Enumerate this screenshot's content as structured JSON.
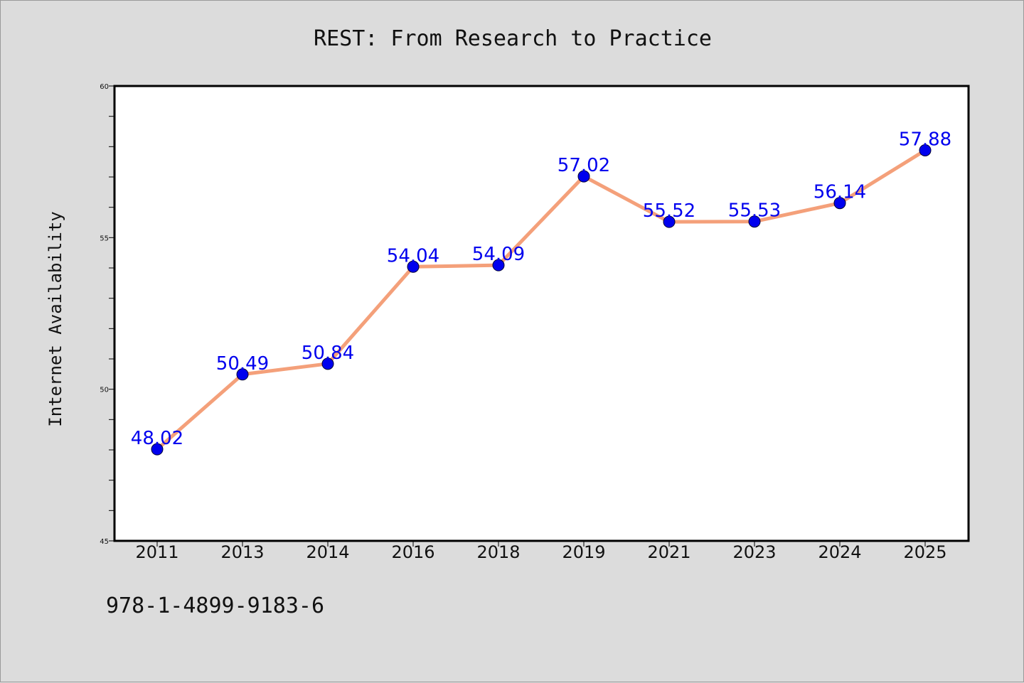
{
  "chart_data": {
    "type": "line",
    "title": "REST: From Research to Practice",
    "xlabel": "",
    "ylabel": "Internet Availability",
    "categories": [
      "2011",
      "2013",
      "2014",
      "2016",
      "2018",
      "2019",
      "2021",
      "2023",
      "2024",
      "2025"
    ],
    "series": [
      {
        "values": [
          48.02,
          50.49,
          50.84,
          54.04,
          54.09,
          57.02,
          55.52,
          55.53,
          56.14,
          57.88
        ],
        "labels": [
          "48.02",
          "50.49",
          "50.84",
          "54.04",
          "54.09",
          "57.02",
          "55.52",
          "55.53",
          "56.14",
          "57.88"
        ],
        "line_color": "#f4a07a",
        "marker_color": "#0000ee"
      }
    ],
    "ylim": [
      45,
      60
    ],
    "yticks": [
      "45",
      "50",
      "55",
      "60"
    ],
    "yminor_step": 1,
    "grid": false,
    "legend": "none"
  },
  "footer": {
    "text": "978-1-4899-9183-6"
  },
  "colors": {
    "background": "#dcdcdc",
    "plot_background": "#ffffff",
    "line": "#f4a07a",
    "marker": "#0000ee",
    "label": "#0000ee"
  }
}
